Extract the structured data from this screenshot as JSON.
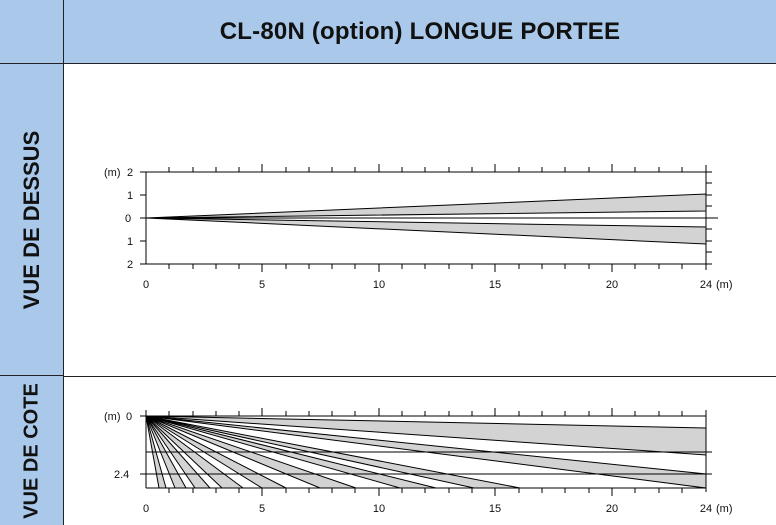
{
  "header": {
    "title": "CL-80N (option) LONGUE PORTEE"
  },
  "sections": {
    "top_label": "VUE DE DESSUS",
    "side_label": "VUE DE COTE"
  },
  "colors": {
    "header_bg": "#a9c8ea",
    "zone_fill": "#d3d3d3",
    "line": "#000000"
  },
  "top_view": {
    "unit_prefix": "(m)",
    "y_labels": [
      "2",
      "1",
      "0",
      "1",
      "2"
    ],
    "x_labels": [
      "0",
      "5",
      "10",
      "15",
      "20",
      "24"
    ],
    "x_unit": "(m)"
  },
  "side_view": {
    "unit_prefix": "(m)",
    "y_labels": [
      "0",
      "2.4"
    ],
    "x_labels": [
      "0",
      "5",
      "10",
      "15",
      "20",
      "24"
    ],
    "x_unit": "(m)"
  }
}
